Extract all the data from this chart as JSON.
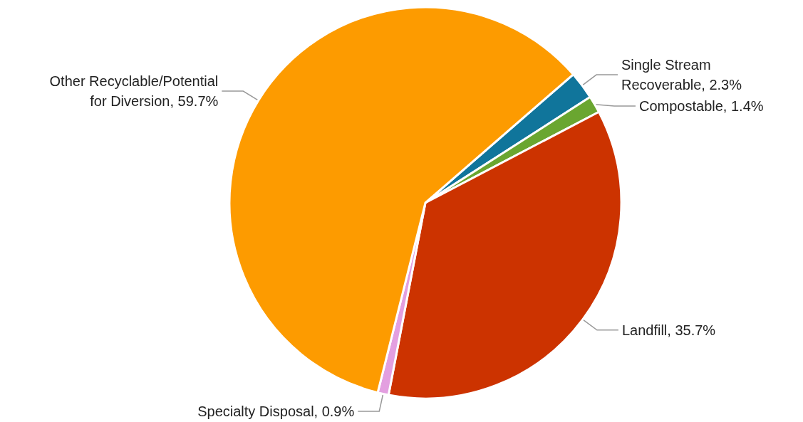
{
  "chart_data": {
    "type": "pie",
    "categories": [
      "Single Stream Recoverable",
      "Compostable",
      "Landfill",
      "Specialty Disposal",
      "Other Recyclable/Potential for Diversion"
    ],
    "values": [
      2.3,
      1.4,
      35.7,
      0.9,
      59.7
    ],
    "colors": [
      "#10759b",
      "#6aa630",
      "#cc3300",
      "#e39fe0",
      "#fd9b00"
    ],
    "value_labels": [
      "2.3%",
      "1.4%",
      "35.7%",
      "0.9%",
      "59.7%"
    ],
    "legend": false
  }
}
